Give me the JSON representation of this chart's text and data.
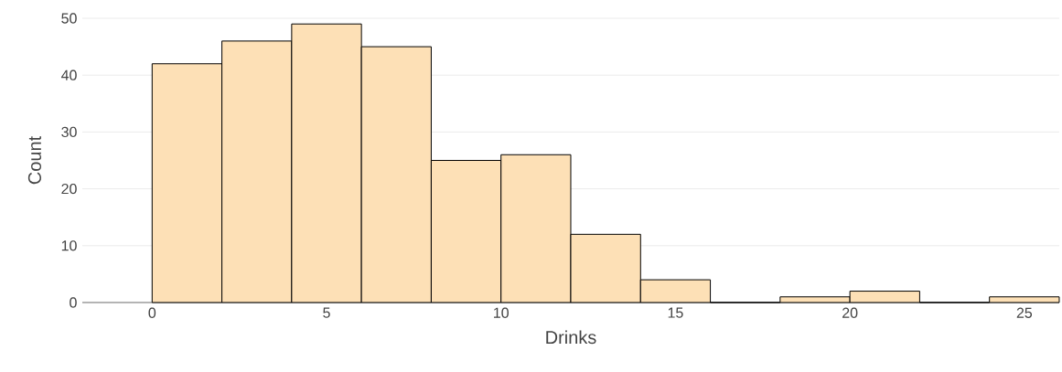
{
  "chart_data": {
    "type": "histogram",
    "xlabel": "Drinks",
    "ylabel": "Count",
    "bins": [
      0,
      2,
      4,
      6,
      8,
      10,
      12,
      14,
      16,
      18,
      20,
      22,
      24,
      26
    ],
    "values": [
      42,
      46,
      49,
      45,
      25,
      26,
      12,
      4,
      0,
      1,
      2,
      0,
      1
    ],
    "color": "#fde0b6",
    "xlim": [
      -2,
      26
    ],
    "ylim": [
      0,
      50
    ],
    "xticks": [
      0,
      5,
      10,
      15,
      20,
      25
    ],
    "yticks": [
      0,
      10,
      20,
      30,
      40,
      50
    ],
    "grid": "y"
  }
}
